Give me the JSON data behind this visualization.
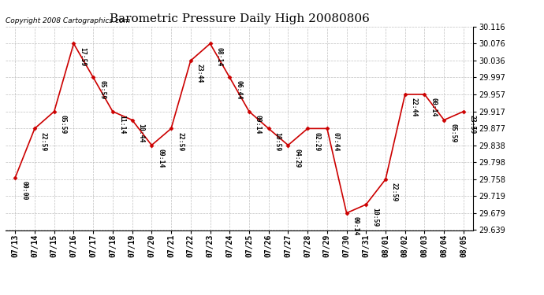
{
  "title": "Barometric Pressure Daily High 20080806",
  "copyright": "Copyright 2008 Cartographics.com",
  "x_labels": [
    "07/13",
    "07/14",
    "07/15",
    "07/16",
    "07/17",
    "07/18",
    "07/19",
    "07/20",
    "07/21",
    "07/22",
    "07/23",
    "07/24",
    "07/25",
    "07/26",
    "07/27",
    "07/28",
    "07/29",
    "07/30",
    "07/31",
    "08/01",
    "08/02",
    "08/03",
    "08/04",
    "08/05"
  ],
  "y_values": [
    29.762,
    29.877,
    29.917,
    30.076,
    29.997,
    29.917,
    29.897,
    29.838,
    29.877,
    30.036,
    30.076,
    29.997,
    29.917,
    29.877,
    29.838,
    29.877,
    29.877,
    29.679,
    29.699,
    29.758,
    29.957,
    29.957,
    29.897,
    29.917
  ],
  "point_labels": [
    "00:00",
    "22:59",
    "05:59",
    "17:59",
    "05:59",
    "11:14",
    "10:44",
    "09:14",
    "22:59",
    "23:44",
    "08:14",
    "06:44",
    "09:14",
    "10:59",
    "04:29",
    "02:29",
    "07:44",
    "09:14",
    "10:59",
    "22:59",
    "22:44",
    "00:14",
    "05:59",
    "23:59"
  ],
  "ylim_min": 29.639,
  "ylim_max": 30.116,
  "y_ticks": [
    29.639,
    29.679,
    29.719,
    29.758,
    29.798,
    29.838,
    29.877,
    29.917,
    29.957,
    29.997,
    30.036,
    30.076,
    30.116
  ],
  "line_color": "#cc0000",
  "marker_color": "#cc0000",
  "bg_color": "#ffffff",
  "grid_color": "#b0b0b0",
  "title_fontsize": 11,
  "label_fontsize": 7,
  "copyright_fontsize": 6.5
}
